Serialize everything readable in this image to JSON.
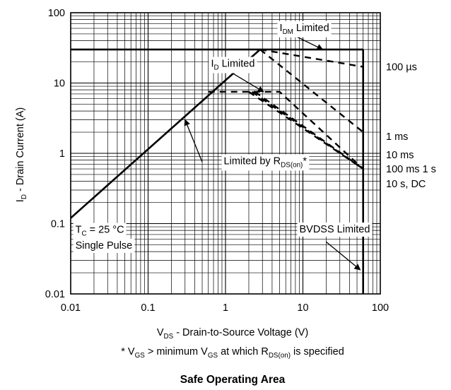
{
  "chart_data": {
    "type": "line",
    "title": "Safe Operating Area",
    "xlabel": {
      "main": "V",
      "sub": "DS",
      "rest": " - Drain-to-Source Voltage (V)"
    },
    "ylabel": {
      "main": "I",
      "sub": "D",
      "rest": " - Drain Current (A)"
    },
    "footnote": {
      "parts": [
        {
          "t": "* V"
        },
        {
          "t": "GS",
          "sub": true
        },
        {
          "t": " > minimum V"
        },
        {
          "t": "GS",
          "sub": true
        },
        {
          "t": " at which R"
        },
        {
          "t": "DS(on)",
          "sub": true
        },
        {
          "t": " is specified"
        }
      ]
    },
    "x_scale": "log",
    "y_scale": "log",
    "xlim": [
      0.01,
      100
    ],
    "ylim": [
      0.01,
      100
    ],
    "x_ticks": [
      "0.01",
      "0.1",
      "1",
      "10",
      "100"
    ],
    "y_ticks": [
      "0.01",
      "0.1",
      "1",
      "10",
      "100"
    ],
    "grid": true,
    "boundaries": [
      {
        "name": "Rds_on",
        "style": "solid",
        "points": [
          [
            0.01,
            0.12
          ],
          [
            2.8,
            30
          ]
        ]
      },
      {
        "name": "Idm",
        "style": "solid",
        "points": [
          [
            0.01,
            30
          ],
          [
            60,
            30
          ]
        ]
      },
      {
        "name": "Bvdss",
        "style": "solid",
        "points": [
          [
            60,
            0.01
          ],
          [
            60,
            30
          ]
        ]
      }
    ],
    "series": [
      {
        "name": "100 µs",
        "style": "dashed",
        "points": [
          [
            2.8,
            30
          ],
          [
            60,
            17
          ]
        ]
      },
      {
        "name": "1 ms",
        "style": "dashed",
        "points": [
          [
            2.8,
            30
          ],
          [
            60,
            2.0
          ]
        ]
      },
      {
        "name": "10 ms",
        "style": "dashed",
        "points": [
          [
            0.6,
            7.5
          ],
          [
            5,
            7.5
          ],
          [
            60,
            0.6
          ]
        ]
      },
      {
        "name": "100 ms",
        "style": "dashed",
        "points": [
          [
            2.0,
            7.5
          ],
          [
            60,
            0.6
          ]
        ]
      },
      {
        "name": "1 s",
        "style": "dashed",
        "points": [
          [
            2.2,
            7.5
          ],
          [
            60,
            0.6
          ]
        ]
      },
      {
        "name": "10 s, DC",
        "style": "dashed",
        "points": [
          [
            2.4,
            7.5
          ],
          [
            60,
            0.6
          ]
        ]
      }
    ],
    "legend_labels": [
      {
        "text": "100 µs",
        "y": 17
      },
      {
        "text": "1 ms",
        "y": 1.75
      },
      {
        "text": "10 ms",
        "y": 0.95
      },
      {
        "text": "100 ms 1 s",
        "y": 0.6
      },
      {
        "text": "10 s, DC",
        "y": 0.37
      }
    ],
    "annotations": [
      {
        "id": "idm",
        "parts": [
          {
            "t": "I"
          },
          {
            "t": "DM",
            "sub": true
          },
          {
            "t": " Limited"
          }
        ],
        "at": [
          5.0,
          55
        ],
        "arrow_from": [
          8.5,
          45
        ],
        "arrow_to": [
          18,
          30
        ]
      },
      {
        "id": "id",
        "parts": [
          {
            "t": "I"
          },
          {
            "t": "D",
            "sub": true
          },
          {
            "t": " Limited"
          }
        ],
        "at": [
          0.65,
          17
        ],
        "arrow_from": [
          1.2,
          14
        ],
        "arrow_to": [
          3.1,
          7.5
        ]
      },
      {
        "id": "rds",
        "parts": [
          {
            "t": "Limited by R"
          },
          {
            "t": "DS(on)",
            "sub": true
          },
          {
            "t": "*"
          }
        ],
        "at": [
          0.95,
          0.7
        ],
        "arrow_from": [
          0.5,
          0.75
        ],
        "arrow_to": [
          0.3,
          3.0
        ]
      },
      {
        "id": "bvdss",
        "parts": [
          {
            "t": "BVDSS Limited"
          }
        ],
        "at": [
          9.0,
          0.075
        ],
        "arrow_from": [
          20,
          0.055
        ],
        "arrow_to": [
          55,
          0.022
        ]
      },
      {
        "id": "tc",
        "parts": [
          {
            "t": "T"
          },
          {
            "t": "C",
            "sub": true
          },
          {
            "t": " = 25 °C"
          }
        ],
        "at": [
          0.0115,
          0.074
        ]
      },
      {
        "id": "pulse",
        "parts": [
          {
            "t": "Single Pulse"
          }
        ],
        "at": [
          0.0115,
          0.044
        ]
      }
    ]
  }
}
